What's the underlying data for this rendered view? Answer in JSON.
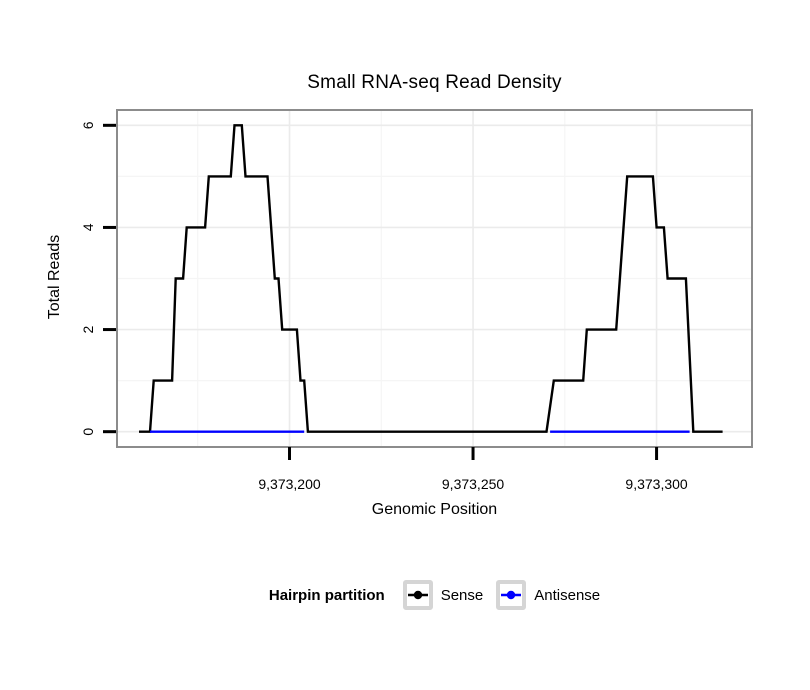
{
  "chart_data": {
    "type": "line",
    "title": "Small RNA-seq Read Density",
    "xlabel": "Genomic Position",
    "ylabel": "Total Reads",
    "xlim": [
      9373153,
      9373326
    ],
    "ylim": [
      -0.3,
      6.3
    ],
    "grid": true,
    "legend_position": "bottom",
    "legend_title": "Hairpin partition",
    "x_ticks": [
      {
        "value": 9373200,
        "label": "9,373,200"
      },
      {
        "value": 9373250,
        "label": "9,373,250"
      },
      {
        "value": 9373300,
        "label": "9,373,300"
      }
    ],
    "y_ticks": [
      {
        "value": 0,
        "label": "0"
      },
      {
        "value": 2,
        "label": "2"
      },
      {
        "value": 4,
        "label": "4"
      },
      {
        "value": 6,
        "label": "6"
      }
    ],
    "x_minor": [
      9373175,
      9373225,
      9373275
    ],
    "y_minor": [
      1,
      3,
      5
    ],
    "grid_major_color": "#ebebeb",
    "grid_minor_color": "#f5f5f5",
    "border_color": "#8c8c8c",
    "tick_color": "#000000",
    "series": [
      {
        "name": "Sense",
        "color": "#000000",
        "segments": [
          [
            [
              9373159,
              0
            ],
            [
              9373162,
              0
            ],
            [
              9373163,
              1
            ],
            [
              9373168,
              1
            ],
            [
              9373169,
              3
            ],
            [
              9373171,
              3
            ],
            [
              9373172,
              4
            ],
            [
              9373177,
              4
            ],
            [
              9373178,
              5
            ],
            [
              9373184,
              5
            ],
            [
              9373185,
              6
            ],
            [
              9373187,
              6
            ],
            [
              9373188,
              5
            ],
            [
              9373194,
              5
            ],
            [
              9373196,
              3
            ],
            [
              9373197,
              3
            ],
            [
              9373198,
              2
            ],
            [
              9373202,
              2
            ],
            [
              9373203,
              1
            ],
            [
              9373204,
              1
            ],
            [
              9373205,
              0
            ],
            [
              9373270,
              0
            ],
            [
              9373272,
              1
            ],
            [
              9373280,
              1
            ],
            [
              9373281,
              2
            ],
            [
              9373289,
              2
            ],
            [
              9373292,
              5
            ],
            [
              9373299,
              5
            ],
            [
              9373300,
              4
            ],
            [
              9373302,
              4
            ],
            [
              9373303,
              3
            ],
            [
              9373308,
              3
            ],
            [
              9373310,
              0
            ],
            [
              9373318,
              0
            ]
          ]
        ]
      },
      {
        "name": "Antisense",
        "color": "#0000ff",
        "segments": [
          [
            [
              9373162,
              0
            ],
            [
              9373204,
              0
            ]
          ],
          [
            [
              9373271,
              0
            ],
            [
              9373309,
              0
            ]
          ]
        ]
      }
    ]
  }
}
